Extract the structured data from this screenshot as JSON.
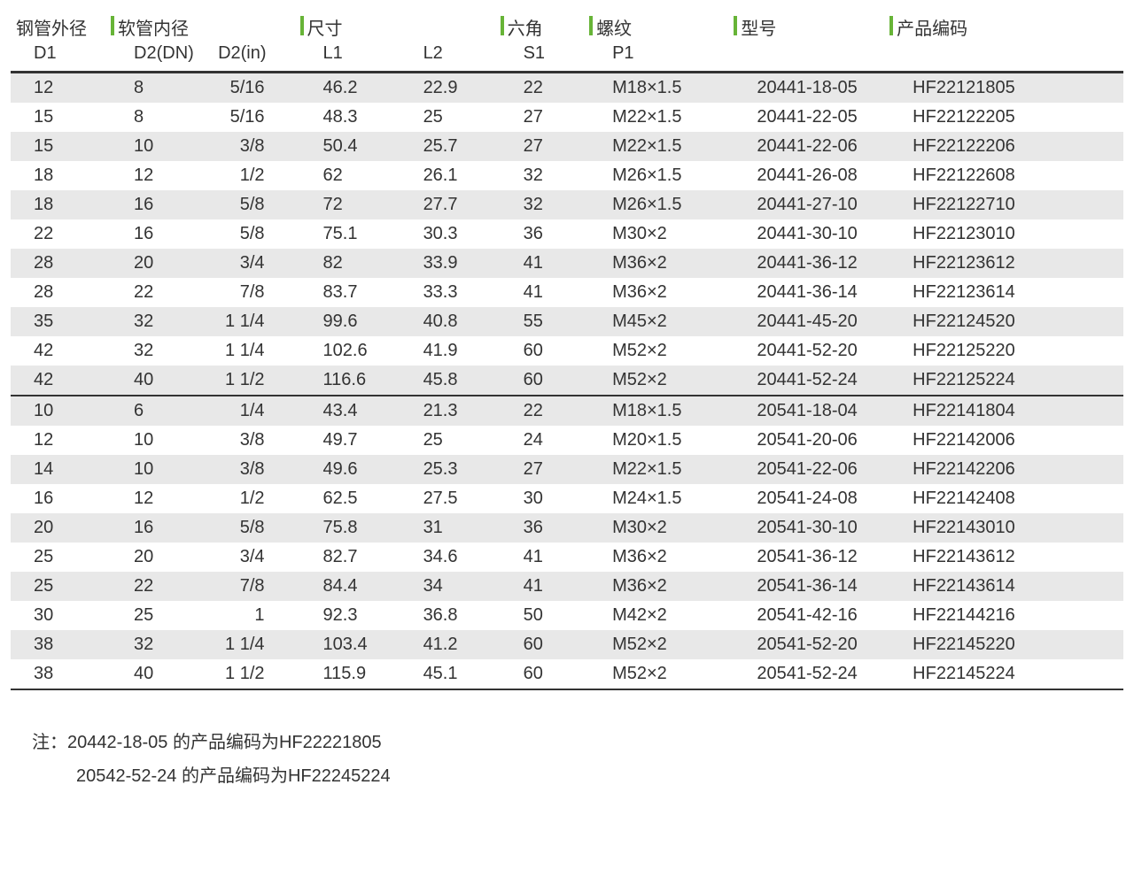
{
  "table": {
    "header_row1": [
      "钢管外径",
      "软管内径",
      "尺寸",
      "",
      "六角",
      "螺纹",
      "型号",
      "产品编码"
    ],
    "header_row1_tickcols": [
      2,
      3,
      5,
      6,
      7,
      8
    ],
    "header_row2": [
      "D1",
      "D2(DN)",
      "D2(in)",
      "L1",
      "L2",
      "S1",
      "P1",
      "",
      ""
    ],
    "colors": {
      "zebra_bg": "#e8e8e8",
      "tick": "#67b437",
      "border": "#333333",
      "text": "#333333"
    },
    "font_size_pt": 15,
    "section1": [
      [
        "12",
        "8",
        "5/16",
        "46.2",
        "22.9",
        "22",
        "M18×1.5",
        "20441-18-05",
        "HF22121805"
      ],
      [
        "15",
        "8",
        "5/16",
        "48.3",
        "25",
        "27",
        "M22×1.5",
        "20441-22-05",
        "HF22122205"
      ],
      [
        "15",
        "10",
        "3/8",
        "50.4",
        "25.7",
        "27",
        "M22×1.5",
        "20441-22-06",
        "HF22122206"
      ],
      [
        "18",
        "12",
        "1/2",
        "62",
        "26.1",
        "32",
        "M26×1.5",
        "20441-26-08",
        "HF22122608"
      ],
      [
        "18",
        "16",
        "5/8",
        "72",
        "27.7",
        "32",
        "M26×1.5",
        "20441-27-10",
        "HF22122710"
      ],
      [
        "22",
        "16",
        "5/8",
        "75.1",
        "30.3",
        "36",
        "M30×2",
        "20441-30-10",
        "HF22123010"
      ],
      [
        "28",
        "20",
        "3/4",
        "82",
        "33.9",
        "41",
        "M36×2",
        "20441-36-12",
        "HF22123612"
      ],
      [
        "28",
        "22",
        "7/8",
        "83.7",
        "33.3",
        "41",
        "M36×2",
        "20441-36-14",
        "HF22123614"
      ],
      [
        "35",
        "32",
        "1 1/4",
        "99.6",
        "40.8",
        "55",
        "M45×2",
        "20441-45-20",
        "HF22124520"
      ],
      [
        "42",
        "32",
        "1 1/4",
        "102.6",
        "41.9",
        "60",
        "M52×2",
        "20441-52-20",
        "HF22125220"
      ],
      [
        "42",
        "40",
        "1 1/2",
        "116.6",
        "45.8",
        "60",
        "M52×2",
        "20441-52-24",
        "HF22125224"
      ]
    ],
    "section2": [
      [
        "10",
        "6",
        "1/4",
        "43.4",
        "21.3",
        "22",
        "M18×1.5",
        "20541-18-04",
        "HF22141804"
      ],
      [
        "12",
        "10",
        "3/8",
        "49.7",
        "25",
        "24",
        "M20×1.5",
        "20541-20-06",
        "HF22142006"
      ],
      [
        "14",
        "10",
        "3/8",
        "49.6",
        "25.3",
        "27",
        "M22×1.5",
        "20541-22-06",
        "HF22142206"
      ],
      [
        "16",
        "12",
        "1/2",
        "62.5",
        "27.5",
        "30",
        "M24×1.5",
        "20541-24-08",
        "HF22142408"
      ],
      [
        "20",
        "16",
        "5/8",
        "75.8",
        "31",
        "36",
        "M30×2",
        "20541-30-10",
        "HF22143010"
      ],
      [
        "25",
        "20",
        "3/4",
        "82.7",
        "34.6",
        "41",
        "M36×2",
        "20541-36-12",
        "HF22143612"
      ],
      [
        "25",
        "22",
        "7/8",
        "84.4",
        "34",
        "41",
        "M36×2",
        "20541-36-14",
        "HF22143614"
      ],
      [
        "30",
        "25",
        "1",
        "92.3",
        "36.8",
        "50",
        "M42×2",
        "20541-42-16",
        "HF22144216"
      ],
      [
        "38",
        "32",
        "1 1/4",
        "103.4",
        "41.2",
        "60",
        "M52×2",
        "20541-52-20",
        "HF22145220"
      ],
      [
        "38",
        "40",
        "1 1/2",
        "115.9",
        "45.1",
        "60",
        "M52×2",
        "20541-52-24",
        "HF22145224"
      ]
    ]
  },
  "notes": {
    "line1": "注：20442-18-05 的产品编码为HF22221805",
    "line2": "20542-52-24 的产品编码为HF22245224"
  }
}
